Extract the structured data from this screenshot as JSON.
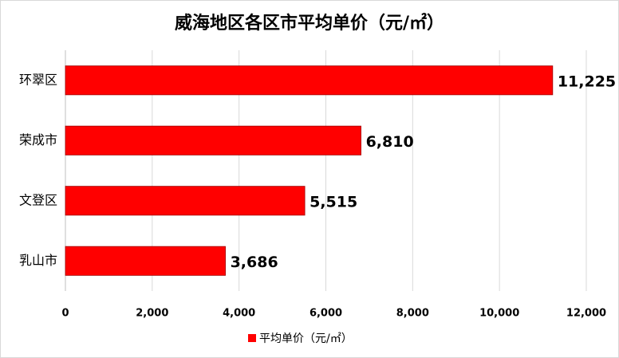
{
  "chart_data": {
    "type": "hbar",
    "title": "威海地区各区市平均单价（元/㎡）",
    "categories": [
      "环翠区",
      "荣成市",
      "文登区",
      "乳山市"
    ],
    "series": [
      {
        "name": "平均单价（元/㎡）",
        "color": "#ff0000",
        "values": [
          11225,
          6810,
          5515,
          3686
        ],
        "value_labels": [
          "11,225",
          "6,810",
          "5,515",
          "3,686"
        ]
      }
    ],
    "xlim": [
      0,
      12000
    ],
    "xticks": [
      0,
      {
        "value": 2000,
        "label": "2,000"
      },
      {
        "value": 4000,
        "label": "4,000"
      },
      {
        "value": 6000,
        "label": "6,000"
      },
      {
        "value": 8000,
        "label": "8,000"
      },
      {
        "value": 10000,
        "label": "10,000"
      },
      {
        "value": 12000,
        "label": "12,000"
      }
    ],
    "grid": true,
    "legend": "bottom"
  }
}
